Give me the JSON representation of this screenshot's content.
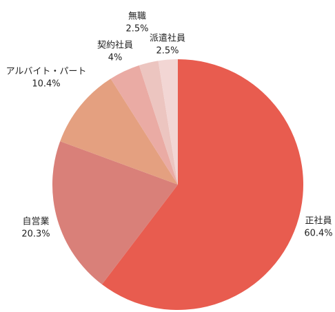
{
  "chart_data": {
    "type": "pie",
    "categories": [
      "正社員",
      "自営業",
      "アルバイト・パート",
      "契約社員",
      "無職",
      "派遣社員"
    ],
    "values": [
      60.4,
      20.3,
      10.4,
      4,
      2.5,
      2.5
    ],
    "value_labels": [
      "60.4%",
      "20.3%",
      "10.4%",
      "4%",
      "2.5%",
      "2.5%"
    ],
    "colors": [
      "#e85c4f",
      "#d98079",
      "#e4a080",
      "#eaaba4",
      "#ecc5c0",
      "#f2d6d4"
    ]
  }
}
